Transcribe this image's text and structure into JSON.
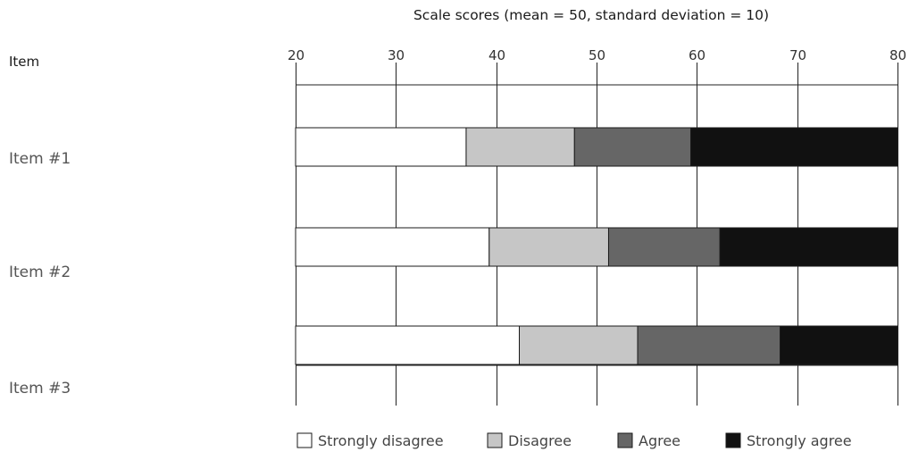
{
  "chart_data": {
    "type": "bar",
    "stacked": true,
    "orientation": "horizontal",
    "title": "Scale scores (mean = 50, standard deviation = 10)",
    "row_header": "Item",
    "categories": [
      "Item #1",
      "Item #2",
      "Item #3"
    ],
    "xlim": [
      20,
      80
    ],
    "x_ticks": [
      "20",
      "30",
      "40",
      "50",
      "60",
      "70",
      "80"
    ],
    "grid": true,
    "legend_position": "bottom",
    "series": [
      {
        "name": "Strongly disagree",
        "color": "#ffffff",
        "segments": [
          [
            20,
            37
          ],
          [
            20,
            39.3
          ],
          [
            20,
            42.3
          ]
        ]
      },
      {
        "name": "Disagree",
        "color": "#c6c6c6",
        "segments": [
          [
            37,
            47.8
          ],
          [
            39.3,
            51.2
          ],
          [
            42.3,
            54.1
          ]
        ]
      },
      {
        "name": "Agree",
        "color": "#666666",
        "segments": [
          [
            47.8,
            59.4
          ],
          [
            51.2,
            62.3
          ],
          [
            54.1,
            68.3
          ]
        ]
      },
      {
        "name": "Strongly agree",
        "color": "#111111",
        "segments": [
          [
            59.4,
            80
          ],
          [
            62.3,
            80
          ],
          [
            68.3,
            80
          ]
        ]
      }
    ]
  }
}
